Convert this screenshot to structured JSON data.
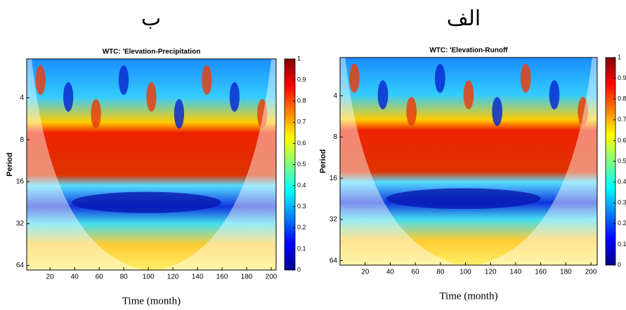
{
  "chart_data": [
    {
      "type": "heatmap",
      "panel_label": "ب",
      "title": "WTC: 'Elevation-Precipitation",
      "xlabel": "Time (month)",
      "ylabel": "Period",
      "xlim": [
        1,
        204
      ],
      "xticks": [
        20,
        40,
        60,
        80,
        100,
        120,
        140,
        160,
        180,
        200
      ],
      "ylim": [
        2.1,
        69
      ],
      "yticks": [
        4,
        8,
        16,
        32,
        64
      ],
      "y_log_base": 2,
      "clim": [
        0,
        1
      ],
      "cticks": [
        0,
        0.1,
        0.2,
        0.3,
        0.4,
        0.5,
        0.6,
        0.7,
        0.8,
        0.9,
        1
      ]
    },
    {
      "type": "heatmap",
      "panel_label": "الف",
      "title": "WTC: 'Elevation-Runoff",
      "xlabel": "Time (month)",
      "ylabel": "Period",
      "xlim": [
        0,
        205
      ],
      "xticks": [
        20,
        40,
        60,
        80,
        100,
        120,
        140,
        160,
        180,
        200
      ],
      "ylim": [
        2.1,
        69
      ],
      "yticks": [
        4,
        8,
        16,
        32,
        64
      ],
      "y_log_base": 2,
      "clim": [
        0,
        1
      ],
      "cticks": [
        0,
        0.1,
        0.2,
        0.3,
        0.4,
        0.5,
        0.6,
        0.7,
        0.8,
        0.9,
        1
      ]
    }
  ]
}
